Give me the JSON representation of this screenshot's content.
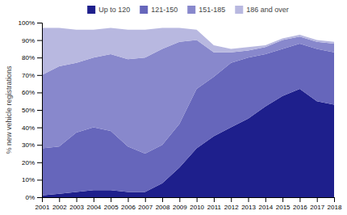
{
  "chart_data": {
    "type": "area",
    "stacked": true,
    "x": [
      2001,
      2002,
      2003,
      2004,
      2005,
      2006,
      2007,
      2008,
      2009,
      2010,
      2011,
      2012,
      2013,
      2014,
      2015,
      2016,
      2017,
      2018
    ],
    "series": [
      {
        "name": "Up to 120",
        "color": "#1e1f8c",
        "values": [
          1,
          2,
          3,
          4,
          4,
          3,
          3,
          8,
          17,
          28,
          35,
          40,
          45,
          52,
          58,
          62,
          55,
          53
        ]
      },
      {
        "name": "121-150",
        "color": "#6666bb",
        "values": [
          27,
          27,
          34,
          36,
          34,
          26,
          22,
          22,
          25,
          34,
          34,
          37,
          35,
          30,
          27,
          26,
          30,
          30
        ]
      },
      {
        "name": "151-185",
        "color": "#8888cc",
        "values": [
          42,
          46,
          40,
          40,
          44,
          50,
          55,
          55,
          47,
          28,
          14,
          6,
          4,
          4,
          5,
          4,
          4,
          5
        ]
      },
      {
        "name": "186 and over",
        "color": "#b8b8e0",
        "values": [
          27,
          22,
          19,
          16,
          15,
          17,
          16,
          12,
          8,
          6,
          4,
          2,
          2,
          1,
          1,
          1,
          1,
          1
        ]
      }
    ],
    "y_label": "% new vehicle registrations",
    "xlim": [
      2001,
      2018
    ],
    "xticks": [
      2001,
      2002,
      2003,
      2004,
      2005,
      2006,
      2007,
      2008,
      2009,
      2010,
      2011,
      2012,
      2013,
      2014,
      2015,
      2016,
      2017,
      2018
    ],
    "ylim": [
      0,
      100
    ],
    "yticks": [
      {
        "value": 0,
        "label": "0%"
      },
      {
        "value": 10,
        "label": "10%"
      },
      {
        "value": 20,
        "label": "20%"
      },
      {
        "value": 30,
        "label": "30%"
      },
      {
        "value": 40,
        "label": "40%"
      },
      {
        "value": 50,
        "label": "50%"
      },
      {
        "value": 60,
        "label": "60%"
      },
      {
        "value": 70,
        "label": "70%"
      },
      {
        "value": 80,
        "label": "80%"
      },
      {
        "value": 90,
        "label": "90%"
      },
      {
        "value": 100,
        "label": "100%"
      }
    ],
    "grid": false,
    "legend": "top"
  }
}
